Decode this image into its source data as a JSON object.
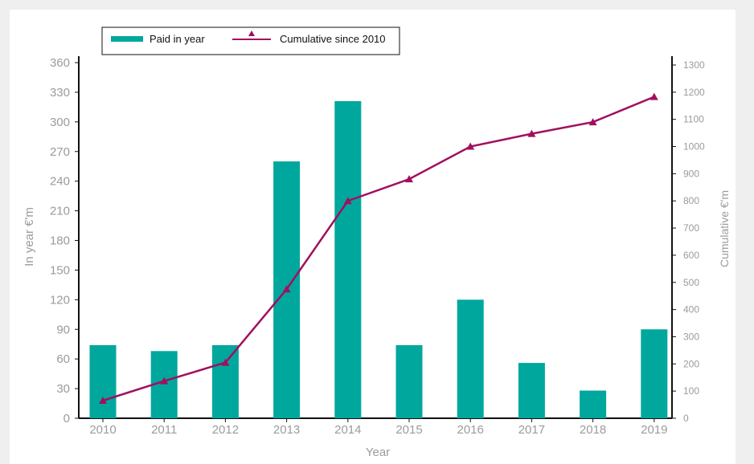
{
  "chart_data": {
    "type": "bar+line",
    "x_label": "Year",
    "y_left_label": "In year €'m",
    "y_right_label": "Cumulative €'m",
    "categories": [
      "2010",
      "2011",
      "2012",
      "2013",
      "2014",
      "2015",
      "2016",
      "2017",
      "2018",
      "2019"
    ],
    "y_left_ticks": [
      0,
      30,
      60,
      90,
      120,
      150,
      180,
      210,
      240,
      270,
      300,
      330,
      360
    ],
    "y_right_ticks": [
      0,
      100,
      200,
      300,
      400,
      500,
      600,
      700,
      800,
      900,
      1000,
      1100,
      1200,
      1300
    ],
    "y_left_range": [
      0,
      360
    ],
    "y_right_range": [
      0,
      1300
    ],
    "grid": false,
    "legend_position": "top-left",
    "series": [
      {
        "name": "Paid in year",
        "type": "bar",
        "axis": "left",
        "color": "#00a79d",
        "values": [
          74,
          68,
          74,
          260,
          321,
          74,
          120,
          56,
          28,
          90
        ]
      },
      {
        "name": "Cumulative since 2010",
        "type": "line",
        "axis": "right",
        "color": "#a0105f",
        "marker": "triangle",
        "values": [
          65,
          137,
          205,
          475,
          800,
          880,
          1000,
          1047,
          1090,
          1183
        ]
      }
    ]
  }
}
